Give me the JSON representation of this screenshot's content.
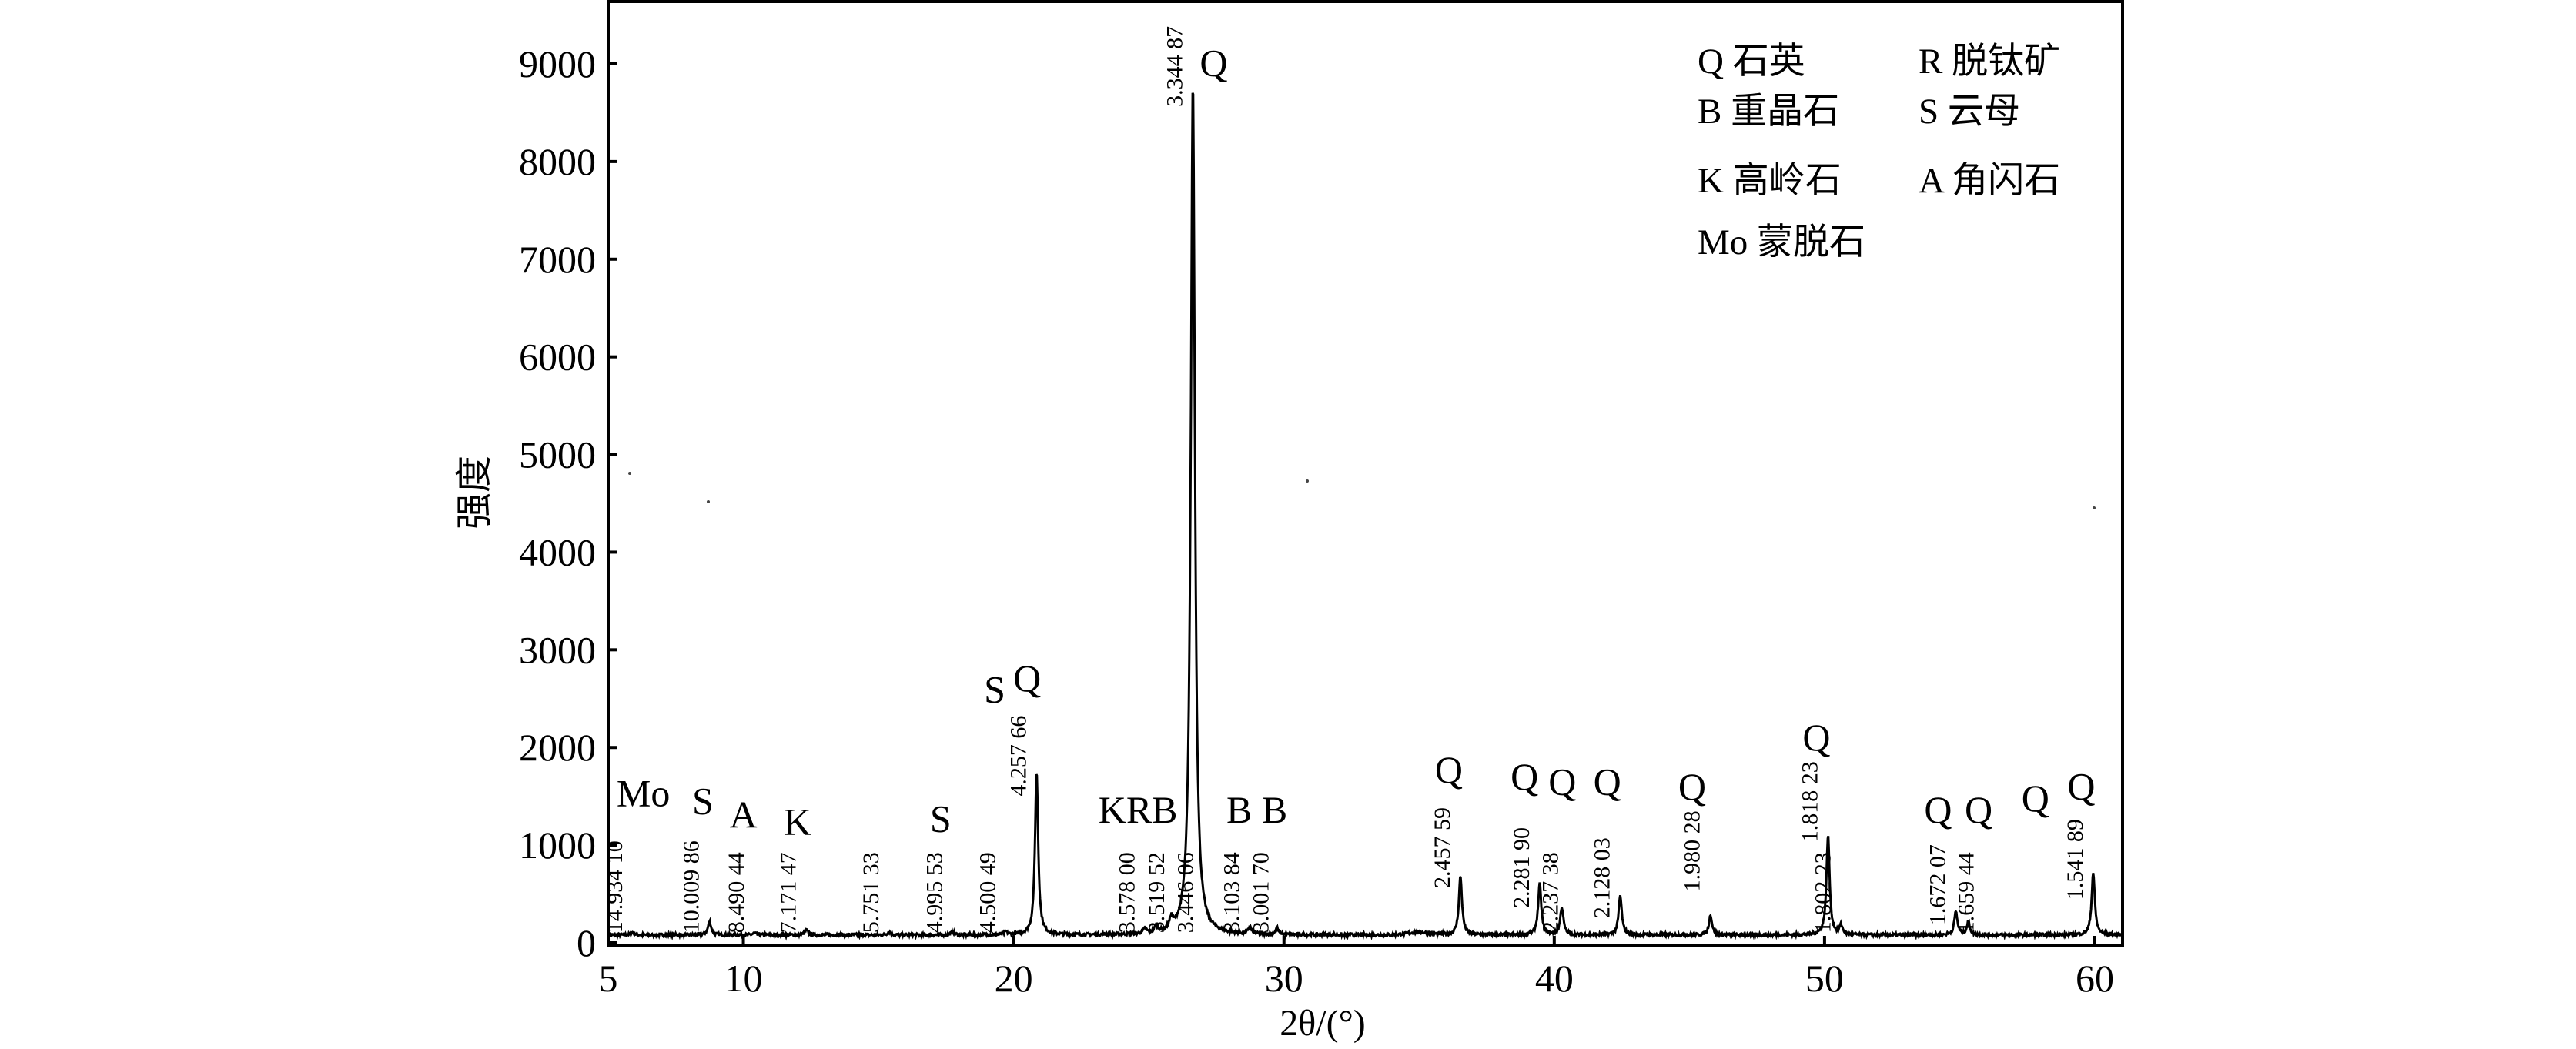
{
  "chart_data": {
    "type": "line",
    "xlabel": "2θ/(°)",
    "ylabel": "强度",
    "xlim": [
      5,
      61
    ],
    "ylim": [
      0,
      9650
    ],
    "xticks": [
      5,
      10,
      20,
      30,
      40,
      50,
      60
    ],
    "yticks": [
      0,
      1000,
      2000,
      3000,
      4000,
      5000,
      6000,
      7000,
      8000,
      9000
    ],
    "grid": false,
    "legend_placement": "top-right",
    "legend": [
      {
        "key": "Q",
        "label": "石英"
      },
      {
        "key": "R",
        "label": "脱钛矿"
      },
      {
        "key": "B",
        "label": "重晶石"
      },
      {
        "key": "S",
        "label": "云母"
      },
      {
        "key": "K",
        "label": "高岭石"
      },
      {
        "key": "A",
        "label": "角闪石"
      },
      {
        "key": "Mo",
        "label": "蒙脱石"
      }
    ],
    "baseline": 80,
    "peaks": [
      {
        "d": "14.934 10",
        "x": 5.91,
        "y": 110
      },
      {
        "d": "10.009 86",
        "x": 8.75,
        "y": 220
      },
      {
        "d": "8.490 44",
        "x": 10.41,
        "y": 100
      },
      {
        "d": "7.171 47",
        "x": 12.33,
        "y": 130
      },
      {
        "d": "5.751 33",
        "x": 15.39,
        "y": 110
      },
      {
        "d": "4.995 53",
        "x": 17.74,
        "y": 110
      },
      {
        "d": "4.500 49",
        "x": 19.71,
        "y": 110
      },
      {
        "d": "4.257 66",
        "x": 20.85,
        "y": 1750
      },
      {
        "d": "3.578 00",
        "x": 24.86,
        "y": 130
      },
      {
        "d": "3.519 52",
        "x": 25.28,
        "y": 150
      },
      {
        "d": "3.446 06",
        "x": 25.83,
        "y": 190
      },
      {
        "d": "3.344 87",
        "x": 26.63,
        "y": 8800
      },
      {
        "d": "3.103 84",
        "x": 28.74,
        "y": 150
      },
      {
        "d": "3.001 70",
        "x": 29.74,
        "y": 140
      },
      {
        "d": "2.457 59",
        "x": 36.53,
        "y": 680
      },
      {
        "d": "2.281 90",
        "x": 39.46,
        "y": 600
      },
      {
        "d": "2.237 38",
        "x": 40.28,
        "y": 360
      },
      {
        "d": "2.128 03",
        "x": 42.44,
        "y": 480
      },
      {
        "d": "1.980 28",
        "x": 45.78,
        "y": 280
      },
      {
        "d": "1.818 23",
        "x": 50.13,
        "y": 1100
      },
      {
        "d": "1.802 23",
        "x": 50.61,
        "y": 170
      },
      {
        "d": "1.672 07",
        "x": 54.86,
        "y": 320
      },
      {
        "d": "1.659 44",
        "x": 55.32,
        "y": 210
      },
      {
        "d": "1.541 89",
        "x": 59.94,
        "y": 720
      }
    ],
    "phase_labels": [
      {
        "text": "Mo",
        "x": 6.3,
        "y": 1540
      },
      {
        "text": "S",
        "x": 8.5,
        "y": 1460
      },
      {
        "text": "A",
        "x": 10.0,
        "y": 1320
      },
      {
        "text": "K",
        "x": 12.0,
        "y": 1250
      },
      {
        "text": "S",
        "x": 17.3,
        "y": 1280
      },
      {
        "text": "S",
        "x": 19.3,
        "y": 1280
      },
      {
        "text": "Q",
        "x": 20.5,
        "y": 2720
      },
      {
        "text": "KRB",
        "x": 24.6,
        "y": 1370
      },
      {
        "text": "Q",
        "x": 27.4,
        "y": 9020
      },
      {
        "text": "B B",
        "x": 29.0,
        "y": 1370
      },
      {
        "text": "Q",
        "x": 36.1,
        "y": 1780
      },
      {
        "text": "Q",
        "x": 38.9,
        "y": 1710
      },
      {
        "text": "Q",
        "x": 40.3,
        "y": 1660
      },
      {
        "text": "Q",
        "x": 41.96,
        "y": 1660
      },
      {
        "text": "Q",
        "x": 45.1,
        "y": 1420
      },
      {
        "text": "Q",
        "x": 49.7,
        "y": 2080
      },
      {
        "text": "Q",
        "x": 54.2,
        "y": 1370
      },
      {
        "text": "Q",
        "x": 55.7,
        "y": 1370
      },
      {
        "text": "Q",
        "x": 57.8,
        "y": 1490
      },
      {
        "text": "Q",
        "x": 59.5,
        "y": 1610
      }
    ]
  }
}
